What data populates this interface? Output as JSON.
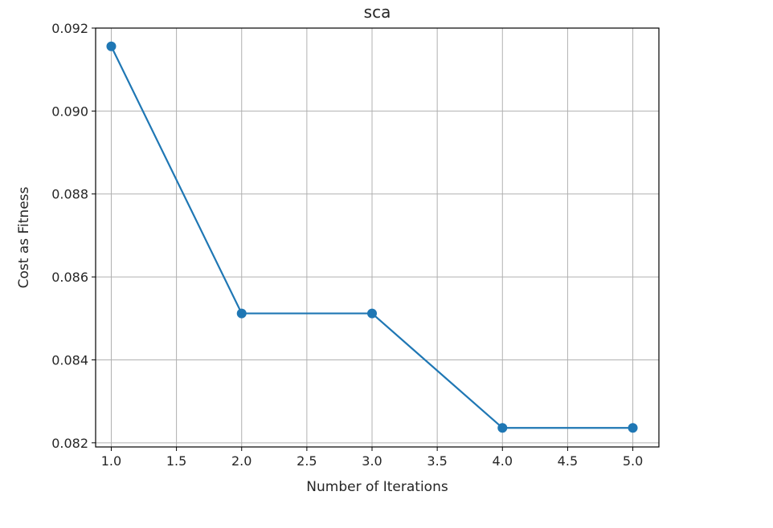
{
  "chart_data": {
    "type": "line",
    "title": "sca",
    "xlabel": "Number of Iterations",
    "ylabel": "Cost as Fitness",
    "x": [
      1.0,
      2.0,
      3.0,
      4.0,
      5.0
    ],
    "series": [
      {
        "values": [
          0.09156,
          0.08512,
          0.08512,
          0.08236,
          0.08236
        ],
        "color": "#1f77b4",
        "marker": "circle"
      }
    ],
    "xlim": [
      0.88,
      5.2
    ],
    "ylim": [
      0.0819,
      0.092
    ],
    "xticks": [
      "1.0",
      "1.5",
      "2.0",
      "2.5",
      "3.0",
      "3.5",
      "4.0",
      "4.5",
      "5.0"
    ],
    "yticks": [
      "0.082",
      "0.084",
      "0.086",
      "0.088",
      "0.090",
      "0.092"
    ],
    "grid": true,
    "legend": "none"
  }
}
